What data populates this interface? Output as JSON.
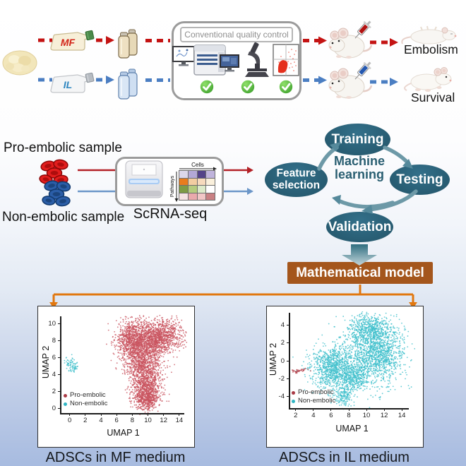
{
  "colors": {
    "red_path": "#c41313",
    "blue_path": "#4b7ec2",
    "teal_node": "#295e71",
    "model_brown": "#a4561c",
    "orange_connector": "#e1770f",
    "pro_point": "#c9545f",
    "non_point": "#3fbfcc"
  },
  "top": {
    "mf_flask_label": "MF",
    "il_flask_label": "IL",
    "qc_box_title": "Conventional quality control",
    "embolism_label": "Embolism",
    "survival_label": "Survival"
  },
  "middle": {
    "pro_sample_label": "Pro-embolic sample",
    "non_sample_label": "Non-embolic sample",
    "scrna_label": "ScRNA-seq",
    "heatmap": {
      "x_axis": "Cells",
      "y_axis": "Pathways",
      "grid": [
        [
          "#dcd7eb",
          "#b3a8d6",
          "#544388",
          "#c0b4dc"
        ],
        [
          "#e87c1e",
          "#f2cda1",
          "#f6dabd",
          "#faf0dc"
        ],
        [
          "#7d9b45",
          "#b4cb7e",
          "#dceac9",
          "#ffffff"
        ],
        [
          "#f5e3e3",
          "#e9a9ac",
          "#f2c6c6",
          "#c98083"
        ]
      ]
    },
    "ml": {
      "center_line1": "Machine",
      "center_line2": "learning",
      "training": "Training",
      "testing": "Testing",
      "validation": "Validation",
      "feature_line1": "Feature",
      "feature_line2": "selection"
    },
    "model_box_label": "Mathematical model"
  },
  "chart_data": [
    {
      "type": "scatter",
      "caption": "ADSCs in MF medium",
      "xlabel": "UMAP 1",
      "ylabel": "UMAP 2",
      "xticks": [
        0,
        2,
        4,
        6,
        8,
        10,
        12,
        14
      ],
      "yticks": [
        0,
        2,
        4,
        6,
        8,
        10
      ],
      "xlim": [
        -1.5,
        15
      ],
      "ylim": [
        -1,
        11
      ],
      "grid": false,
      "legend_position": "lower-left",
      "legend": [
        {
          "label": "Pro-embolic",
          "color": "#a93a45"
        },
        {
          "label": "Non-embolic",
          "color": "#31b5c4"
        }
      ],
      "series": [
        {
          "name": "Pro-embolic",
          "color": "#c9545f",
          "clusters": [
            {
              "cx": 7.9,
              "cy": 8.1,
              "sx": 1.0,
              "sy": 1.2,
              "n": 800
            },
            {
              "cx": 11.6,
              "cy": 8.6,
              "sx": 1.5,
              "sy": 0.95,
              "n": 950
            },
            {
              "cx": 9.8,
              "cy": 7.3,
              "sx": 1.2,
              "sy": 1.1,
              "n": 650
            },
            {
              "cx": 9.4,
              "cy": 5.2,
              "sx": 1.05,
              "sy": 0.95,
              "n": 520
            },
            {
              "cx": 9.8,
              "cy": 2.6,
              "sx": 1.05,
              "sy": 1.15,
              "n": 850
            },
            {
              "cx": 9.9,
              "cy": 1.0,
              "sx": 0.75,
              "sy": 0.6,
              "n": 330
            }
          ]
        },
        {
          "name": "Non-embolic",
          "color": "#44c0cc",
          "clusters": [
            {
              "cx": 0.05,
              "cy": 5.35,
              "sx": 0.28,
              "sy": 0.38,
              "n": 45
            },
            {
              "cx": 0.5,
              "cy": 4.85,
              "sx": 0.3,
              "sy": 0.28,
              "n": 40
            }
          ]
        }
      ]
    },
    {
      "type": "scatter",
      "caption": "ADSCs in IL medium",
      "xlabel": "UMAP 1",
      "ylabel": "UMAP 2",
      "xticks": [
        2,
        4,
        6,
        8,
        10,
        12,
        14
      ],
      "yticks": [
        -4,
        -2,
        0,
        2,
        4
      ],
      "xlim": [
        0.5,
        15.5
      ],
      "ylim": [
        -5.5,
        5.5
      ],
      "grid": false,
      "legend_position": "lower-left",
      "legend": [
        {
          "label": "Pro-embolic",
          "color": "#a93a45"
        },
        {
          "label": "Non-embolic",
          "color": "#31b5c4"
        }
      ],
      "series": [
        {
          "name": "Non-embolic",
          "color": "#3fbfcc",
          "clusters": [
            {
              "cx": 6.2,
              "cy": -0.7,
              "sx": 1.25,
              "sy": 1.15,
              "n": 900
            },
            {
              "cx": 10.9,
              "cy": 0.9,
              "sx": 1.7,
              "sy": 1.7,
              "n": 1500
            },
            {
              "cx": 10.4,
              "cy": 3.6,
              "sx": 1.3,
              "sy": 0.8,
              "n": 450
            },
            {
              "cx": 8.6,
              "cy": -1.8,
              "sx": 0.9,
              "sy": 0.8,
              "n": 350
            },
            {
              "cx": 7.4,
              "cy": -3.9,
              "sx": 0.55,
              "sy": 0.7,
              "n": 180
            }
          ]
        },
        {
          "name": "Pro-embolic",
          "color": "#b03440",
          "clusters": [
            {
              "cx": 2.4,
              "cy": -1.1,
              "sx": 0.4,
              "sy": 0.13,
              "n": 32
            }
          ]
        }
      ]
    }
  ]
}
